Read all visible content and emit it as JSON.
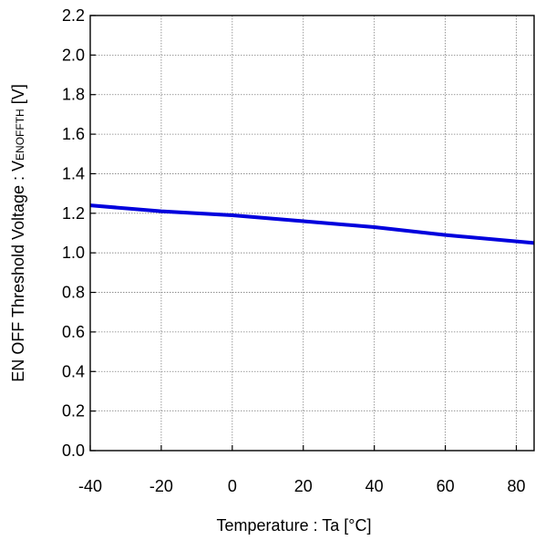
{
  "chart_data": {
    "type": "line",
    "title": "",
    "xlabel": "Temperature : Ta [°C]",
    "ylabel_main": "EN OFF Threshold Voltage : V",
    "ylabel_subscript": "ENOFFTH",
    "ylabel_unit": " [V]",
    "xlim": [
      -40,
      85
    ],
    "ylim": [
      0.0,
      2.2
    ],
    "grid": true,
    "x_ticks": [
      -40,
      -20,
      0,
      20,
      40,
      60,
      80
    ],
    "x_tick_labels": [
      "-40",
      "-20",
      "0",
      "20",
      "40",
      "60",
      "80"
    ],
    "y_ticks": [
      0.0,
      0.2,
      0.4,
      0.6,
      0.8,
      1.0,
      1.2,
      1.4,
      1.6,
      1.8,
      2.0,
      2.2
    ],
    "y_tick_labels": [
      "0.0",
      "0.2",
      "0.4",
      "0.6",
      "0.8",
      "1.0",
      "1.2",
      "1.4",
      "1.6",
      "1.8",
      "2.0",
      "2.2"
    ],
    "series": [
      {
        "color": "#0000dd",
        "x": [
          -40,
          -20,
          0,
          20,
          40,
          60,
          85
        ],
        "y": [
          1.24,
          1.21,
          1.19,
          1.16,
          1.13,
          1.09,
          1.05
        ]
      }
    ]
  }
}
